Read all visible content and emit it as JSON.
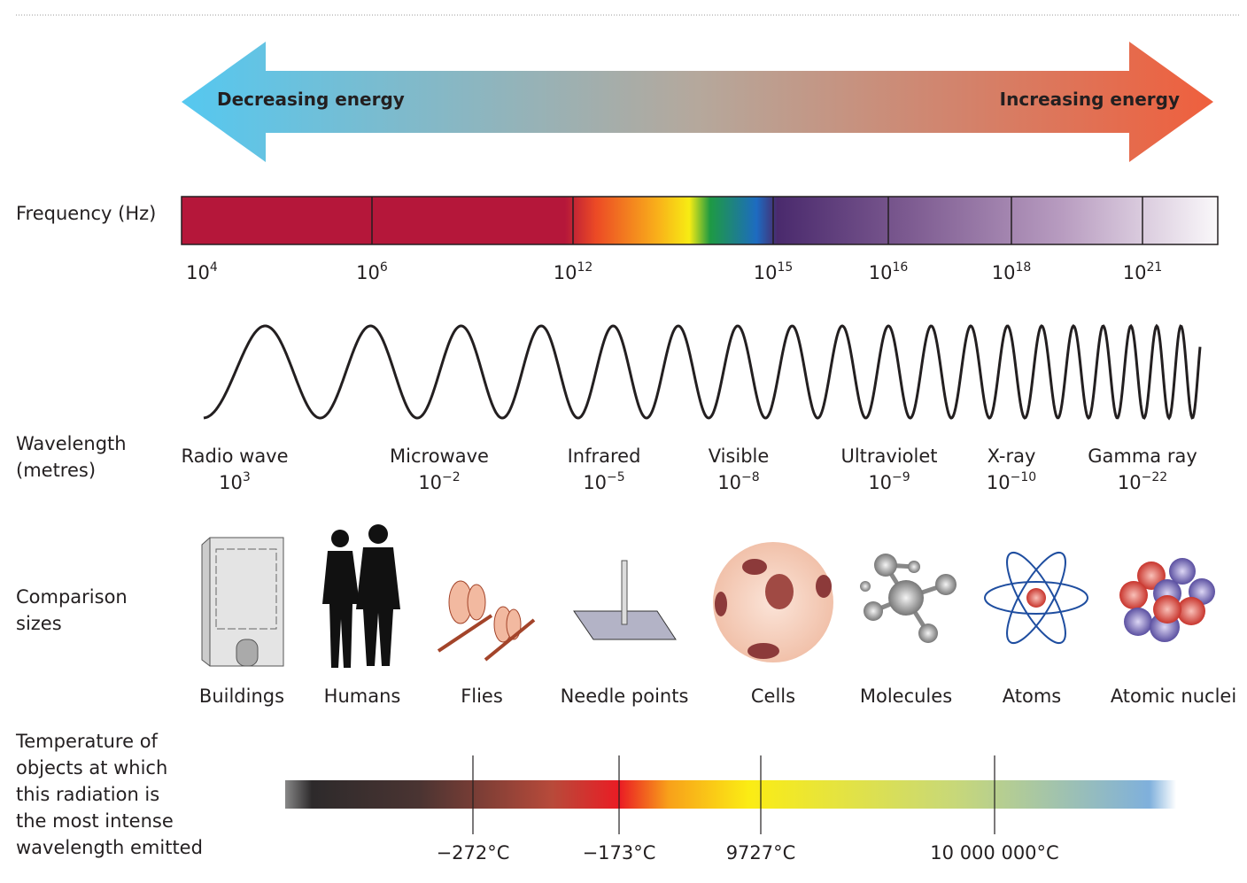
{
  "energy": {
    "left": "Decreasing energy",
    "right": "Increasing energy"
  },
  "frequency": {
    "label": "Frequency (Hz)",
    "ticks": [
      {
        "base": "10",
        "exp": "4"
      },
      {
        "base": "10",
        "exp": "6"
      },
      {
        "base": "10",
        "exp": "12"
      },
      {
        "base": "10",
        "exp": "15"
      },
      {
        "base": "10",
        "exp": "16"
      },
      {
        "base": "10",
        "exp": "18"
      },
      {
        "base": "10",
        "exp": "21"
      }
    ]
  },
  "wavelength": {
    "label": [
      "Wavelength",
      "(metres)"
    ],
    "bands": [
      {
        "name": "Radio wave",
        "base": "10",
        "exp": "3"
      },
      {
        "name": "Microwave",
        "base": "10",
        "exp": "−2"
      },
      {
        "name": "Infrared",
        "base": "10",
        "exp": "−5"
      },
      {
        "name": "Visible",
        "base": "10",
        "exp": "−8"
      },
      {
        "name": "Ultraviolet",
        "base": "10",
        "exp": "−9"
      },
      {
        "name": "X-ray",
        "base": "10",
        "exp": "−10"
      },
      {
        "name": "Gamma ray",
        "base": "10",
        "exp": "−22"
      }
    ]
  },
  "comparison": {
    "label": [
      "Comparison",
      "sizes"
    ],
    "items": [
      "Buildings",
      "Humans",
      "Flies",
      "Needle points",
      "Cells",
      "Molecules",
      "Atoms",
      "Atomic nuclei"
    ]
  },
  "temperature": {
    "label": [
      "Temperature of",
      "objects at which",
      "this radiation is",
      "the most intense",
      "wavelength emitted"
    ],
    "ticks": [
      "−272°C",
      "−173°C",
      "9727°C",
      "10 000 000°C"
    ]
  }
}
